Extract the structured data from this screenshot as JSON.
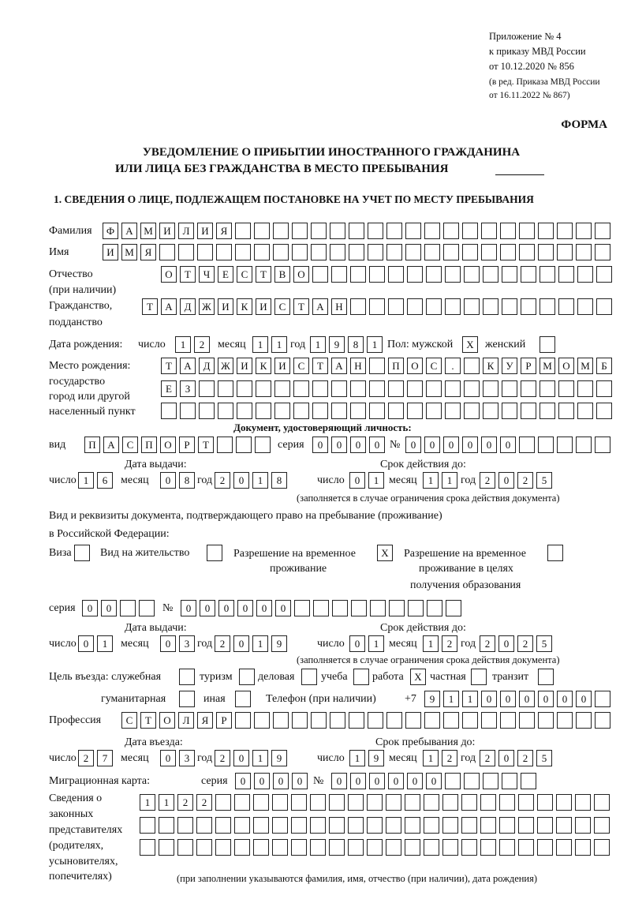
{
  "header": {
    "appendix": [
      "Приложение № 4",
      "к приказу МВД России",
      "от 10.12.2020 № 856"
    ],
    "amendment": [
      "(в ред. Приказа МВД России",
      "от 16.11.2022 № 867)"
    ],
    "forma": "ФОРМА",
    "title_line1": "УВЕДОМЛЕНИЕ О ПРИБЫТИИ ИНОСТРАННОГО ГРАЖДАНИНА",
    "title_line2": "ИЛИ ЛИЦА БЕЗ ГРАЖДАНСТВА В МЕСТО ПРЕБЫВАНИЯ",
    "section1": "1. СВЕДЕНИЯ О ЛИЦЕ, ПОДЛЕЖАЩЕМ ПОСТАНОВКЕ НА УЧЕТ ПО МЕСТУ ПРЕБЫВАНИЯ"
  },
  "labels": {
    "surname": "Фамилия",
    "name": "Имя",
    "patronymic": "Отчество",
    "patronymic_note": "(при наличии)",
    "citizenship": "Гражданство,",
    "citizenship2": "подданство",
    "birth_date": "Дата рождения:",
    "day": "число",
    "month": "месяц",
    "year": "год",
    "sex": "Пол: мужской",
    "female": "женский",
    "birth_place": [
      "Место рождения:",
      "государство",
      "город или другой",
      "населенный пункт"
    ],
    "id_doc": "Документ, удостоверяющий личность:",
    "kind": "вид",
    "series": "серия",
    "number": "№",
    "issue_date": "Дата выдачи:",
    "valid_until": "Срок действия до:",
    "validity_note": "(заполняется в случае ограничения срока действия документа)",
    "residence_doc": "Вид и реквизиты документа, подтверждающего право на пребывание (проживание)",
    "residence_doc2": "в Российской Федерации:",
    "visa": "Виза",
    "residence_permit": "Вид на жительство",
    "temp_permit": [
      "Разрешение на временное",
      "проживание"
    ],
    "temp_permit_edu": [
      "Разрешение на временное",
      "проживание в целях",
      "получения образования"
    ],
    "purpose": "Цель въезда: служебная",
    "tourism": "туризм",
    "business": "деловая",
    "study": "учеба",
    "work": "работа",
    "private": "частная",
    "transit": "транзит",
    "humanitarian": "гуманитарная",
    "other": "иная",
    "phone": "Телефон (при наличии)",
    "phone_prefix": "+7",
    "profession": "Профессия",
    "entry_date": "Дата въезда:",
    "stay_until": "Срок пребывания до:",
    "migration_card": "Миграционная карта:",
    "representatives": [
      "Сведения о",
      "законных",
      "представителях",
      "(родителях,",
      "усыновителях,",
      "попечителях)"
    ],
    "representatives_note": "(при заполнении указываются фамилия, имя, отчество (при наличии), дата рождения)"
  },
  "fields": {
    "surname": {
      "value": "ФАМИЛИЯ",
      "cells": 27
    },
    "name": {
      "value": "ИМЯ",
      "cells": 27
    },
    "patronymic": {
      "value": "ОТЧЕСТВО",
      "cells": 24
    },
    "citizenship": {
      "value": "ТАДЖИКИСТАН",
      "cells": 25
    },
    "birth_day": {
      "value": "12",
      "cells": 2
    },
    "birth_month": {
      "value": "11",
      "cells": 2
    },
    "birth_year": {
      "value": "1981",
      "cells": 4
    },
    "sex_male": {
      "value": "X",
      "cells": 1
    },
    "sex_female": {
      "value": "",
      "cells": 1
    },
    "birth_place_1": {
      "value": "ТАДЖИКИСТАН ПОС. КУРМОМБ",
      "cells": 24
    },
    "birth_place_2": {
      "value": "ЕЗ",
      "cells": 24
    },
    "birth_place_3": {
      "value": "",
      "cells": 24
    },
    "id_kind": {
      "value": "ПАСПОРТ",
      "cells": 10
    },
    "id_series": {
      "value": "0000",
      "cells": 4
    },
    "id_number": {
      "value": "000000",
      "cells": 11
    },
    "id_issue_day": {
      "value": "16",
      "cells": 2
    },
    "id_issue_month": {
      "value": "08",
      "cells": 2
    },
    "id_issue_year": {
      "value": "2018",
      "cells": 4
    },
    "id_valid_day": {
      "value": "01",
      "cells": 2
    },
    "id_valid_month": {
      "value": "11",
      "cells": 2
    },
    "id_valid_year": {
      "value": "2025",
      "cells": 4
    },
    "visa": {
      "value": "",
      "cells": 1
    },
    "residence_permit": {
      "value": "",
      "cells": 1
    },
    "temp_permit": {
      "value": "X",
      "cells": 1
    },
    "temp_permit_edu": {
      "value": "",
      "cells": 1
    },
    "res_series": {
      "value": "00",
      "cells": 4
    },
    "res_number": {
      "value": "000000",
      "cells": 15
    },
    "res_issue_day": {
      "value": "01",
      "cells": 2
    },
    "res_issue_month": {
      "value": "03",
      "cells": 2
    },
    "res_issue_year": {
      "value": "2019",
      "cells": 4
    },
    "res_valid_day": {
      "value": "01",
      "cells": 2
    },
    "res_valid_month": {
      "value": "12",
      "cells": 2
    },
    "res_valid_year": {
      "value": "2025",
      "cells": 4
    },
    "purpose_official": {
      "value": "",
      "cells": 1
    },
    "purpose_tourism": {
      "value": "",
      "cells": 1
    },
    "purpose_business": {
      "value": "",
      "cells": 1
    },
    "purpose_study": {
      "value": "",
      "cells": 1
    },
    "purpose_work": {
      "value": "X",
      "cells": 1
    },
    "purpose_private": {
      "value": "",
      "cells": 1
    },
    "purpose_transit": {
      "value": "",
      "cells": 1
    },
    "purpose_humanitarian": {
      "value": "",
      "cells": 1
    },
    "purpose_other": {
      "value": "",
      "cells": 1
    },
    "phone": {
      "value": "911000000",
      "cells": 10
    },
    "profession": {
      "value": "СТОЛЯР",
      "cells": 26
    },
    "entry_day": {
      "value": "27",
      "cells": 2
    },
    "entry_month": {
      "value": "03",
      "cells": 2
    },
    "entry_year": {
      "value": "2019",
      "cells": 4
    },
    "stay_day": {
      "value": "19",
      "cells": 2
    },
    "stay_month": {
      "value": "12",
      "cells": 2
    },
    "stay_year": {
      "value": "2025",
      "cells": 4
    },
    "mig_series": {
      "value": "0000",
      "cells": 4
    },
    "mig_number": {
      "value": "000000",
      "cells": 11
    },
    "rep_1": {
      "value": "1122",
      "cells": 25
    },
    "rep_2": {
      "value": "",
      "cells": 25
    },
    "rep_3": {
      "value": "",
      "cells": 25
    }
  }
}
